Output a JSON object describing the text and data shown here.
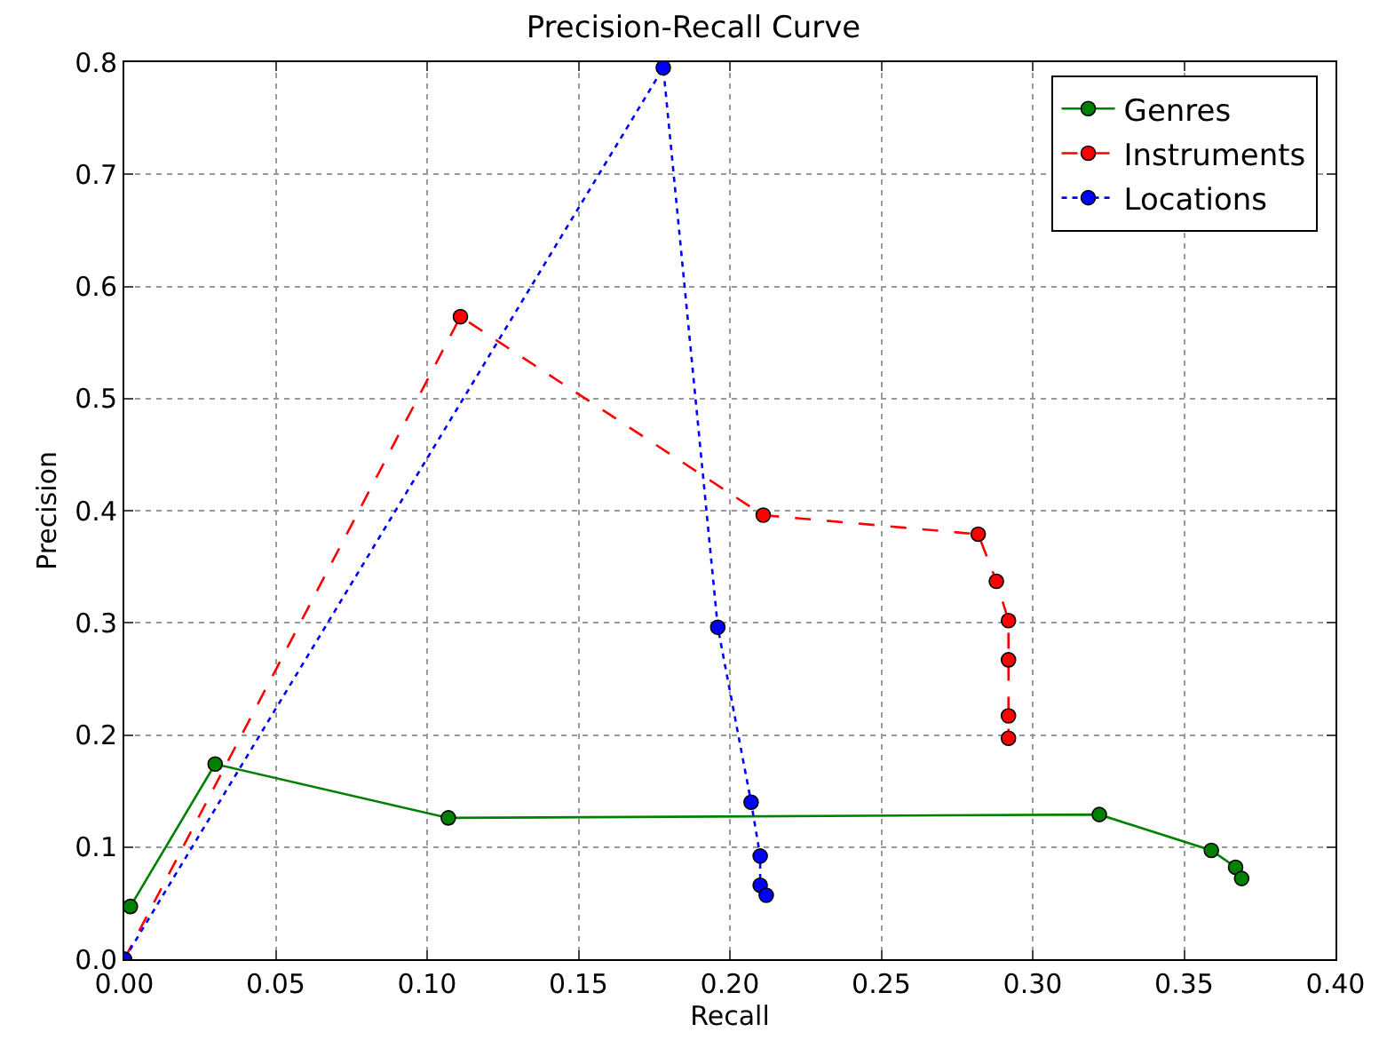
{
  "chart_data": {
    "type": "line",
    "title": "Precision-Recall Curve",
    "xlabel": "Recall",
    "ylabel": "Precision",
    "xlim": [
      0,
      0.4
    ],
    "xticks": [
      {
        "value": 0,
        "label": "0.00"
      },
      0.05,
      {
        "value": 0.1,
        "label": "0.10"
      },
      0.15,
      {
        "value": 0.2,
        "label": "0.20"
      },
      0.25,
      {
        "value": 0.3,
        "label": "0.30"
      },
      0.35,
      {
        "value": 0.4,
        "label": "0.40"
      }
    ],
    "ylim": [
      0,
      0.8
    ],
    "yticks": [
      {
        "value": 0,
        "label": "0.0"
      },
      0.1,
      0.2,
      0.3,
      0.4,
      0.5,
      0.6,
      0.7,
      0.8
    ],
    "grid": true,
    "legend": "top right",
    "marker": "circle",
    "series": [
      {
        "name": "Genres",
        "color": "#008000",
        "line_style": "solid",
        "x": [
          0.002,
          0.03,
          0.107,
          0.322,
          0.359,
          0.367,
          0.369
        ],
        "values": [
          0.047,
          0.174,
          0.126,
          0.129,
          0.097,
          0.082,
          0.072
        ]
      },
      {
        "name": "Instruments",
        "color": "#ff0000",
        "line_style": "dashed",
        "x": [
          0.0,
          0.111,
          0.211,
          0.282,
          0.288,
          0.292,
          0.292,
          0.292,
          0.292
        ],
        "values": [
          0.0,
          0.573,
          0.396,
          0.379,
          0.337,
          0.302,
          0.267,
          0.217,
          0.197
        ]
      },
      {
        "name": "Locations",
        "color": "#0000ff",
        "line_style": "dotted",
        "x": [
          0.0,
          0.178,
          0.196,
          0.207,
          0.21,
          0.21,
          0.212
        ],
        "values": [
          0.0,
          0.795,
          0.296,
          0.14,
          0.092,
          0.066,
          0.057
        ]
      }
    ]
  }
}
